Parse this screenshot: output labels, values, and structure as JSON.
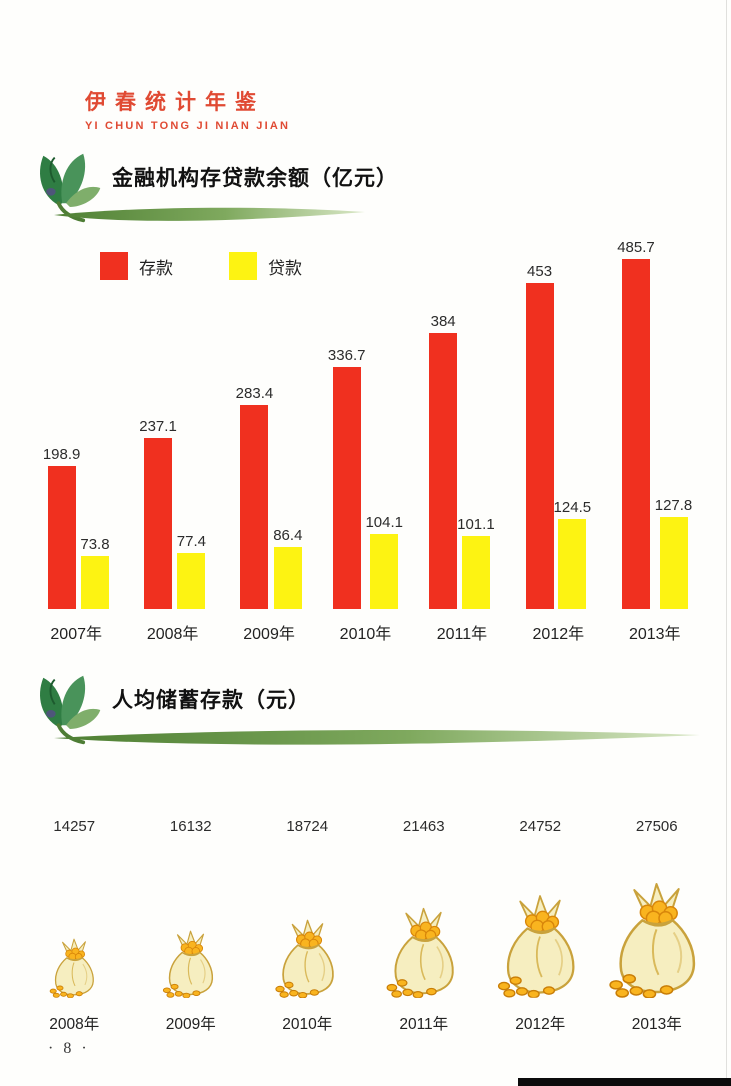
{
  "header": {
    "title_cn": "伊春统计年鉴",
    "title_pinyin": "YI CHUN TONG JI NIAN JIAN",
    "color": "#e04a33"
  },
  "chart_data": [
    {
      "type": "bar",
      "title": "金融机构存贷款余额（亿元）",
      "categories": [
        "2007年",
        "2008年",
        "2009年",
        "2010年",
        "2011年",
        "2012年",
        "2013年"
      ],
      "series": [
        {
          "name": "存款",
          "color": "#f0301f",
          "values": [
            198.9,
            237.1,
            283.4,
            336.7,
            384,
            453,
            485.7
          ]
        },
        {
          "name": "贷款",
          "color": "#fdf312",
          "values": [
            73.8,
            77.4,
            86.4,
            104.1,
            101.1,
            124.5,
            127.8
          ]
        }
      ],
      "value_labels": true,
      "axes_visible": false,
      "grid": false,
      "legend_position": "top-left",
      "ylim": [
        0,
        500
      ]
    },
    {
      "type": "bar",
      "style": "pictogram-money-bags",
      "title": "人均储蓄存款（元）",
      "categories": [
        "2008年",
        "2009年",
        "2010年",
        "2011年",
        "2012年",
        "2013年"
      ],
      "values": [
        14257,
        16132,
        18724,
        21463,
        24752,
        27506
      ],
      "icon": "money-bag-icon",
      "value_labels": true,
      "axes_visible": false,
      "grid": false
    }
  ],
  "footer": {
    "page_number": "· 8 ·"
  },
  "decor": {
    "leaf_icon": "leaf-sprig-icon",
    "underline": "green-swoosh",
    "bar_colors": {
      "deposit_red": "#f0301f",
      "loan_yellow": "#fdf312"
    }
  }
}
